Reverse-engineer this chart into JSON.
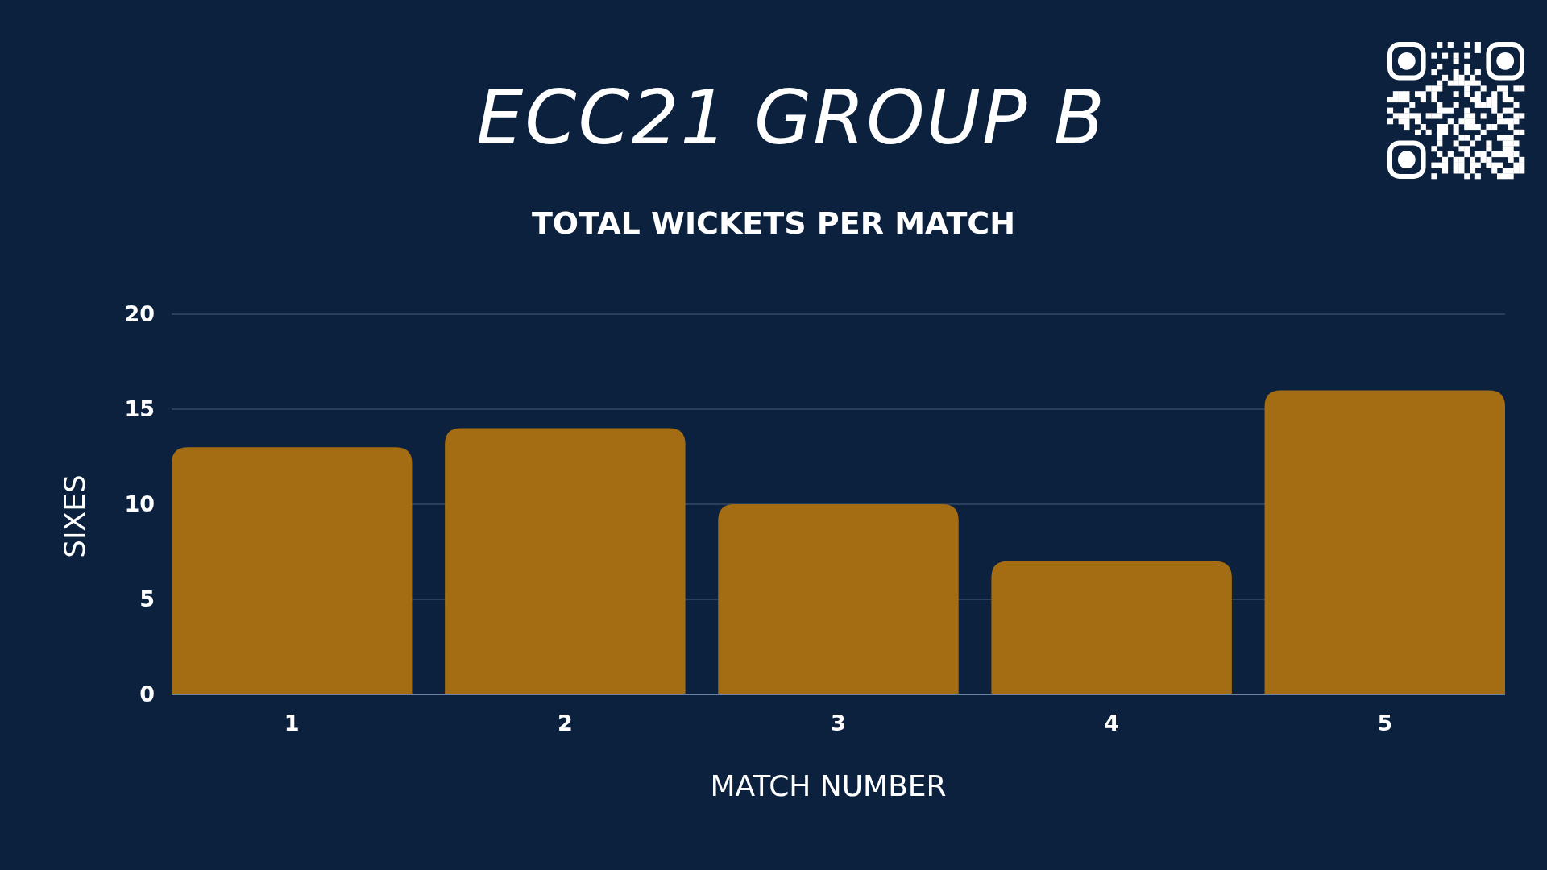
{
  "chart_data": {
    "type": "bar",
    "title": "ECC21 GROUP B",
    "subtitle": "TOTAL WICKETS PER MATCH",
    "xlabel": "MATCH NUMBER",
    "ylabel": "SIXES",
    "categories": [
      "1",
      "2",
      "3",
      "4",
      "5"
    ],
    "values": [
      13,
      14,
      10,
      7,
      16
    ],
    "color": "#a56d13",
    "ylim": [
      0,
      20
    ],
    "yticks": [
      0,
      5,
      10,
      15,
      20
    ],
    "grid": "y"
  }
}
